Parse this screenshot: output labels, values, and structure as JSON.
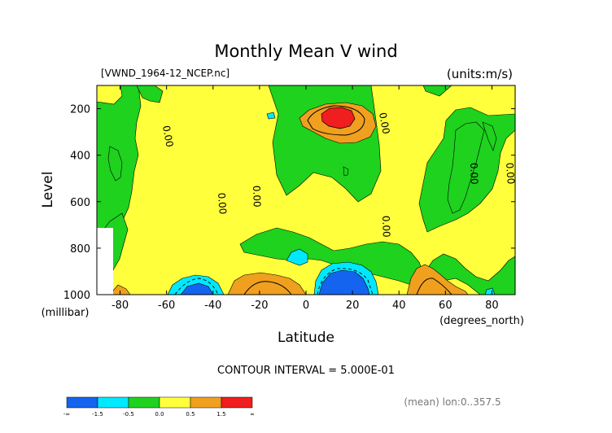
{
  "chart_data": {
    "type": "contour",
    "title": "Monthly Mean V wind",
    "file_label": "[VWND_1964-12_NCEP.nc]",
    "units_label": "(units:m/s)",
    "xlabel": "Latitude",
    "x_units": "(degrees_north)",
    "ylabel": "Level",
    "y_units": "(millibar)",
    "xlim": [
      -90,
      90
    ],
    "ylim": [
      1000,
      100
    ],
    "x_ticks": [
      -80,
      -60,
      -40,
      -20,
      0,
      20,
      40,
      60,
      80
    ],
    "x_tick_labels": [
      "-80",
      "-60",
      "-40",
      "-20",
      "0",
      "20",
      "40",
      "60",
      "80"
    ],
    "y_ticks": [
      200,
      400,
      600,
      800,
      1000
    ],
    "y_tick_labels": [
      "200",
      "400",
      "600",
      "800",
      "1000"
    ],
    "contour_interval_text": "CONTOUR INTERVAL = 5.000E-01",
    "footnote": "(mean) lon:0..357.5",
    "contour_labels": [
      "0.00",
      "0.00",
      "0.00",
      "0.00",
      "0.00",
      "0.00"
    ],
    "colorbar": {
      "colors": [
        "#1464f0",
        "#00e8ff",
        "#1ed21e",
        "#ffff3c",
        "#f0a01e",
        "#f01e1e"
      ],
      "labels": [
        "-∞",
        "-1.5",
        "-0.5",
        "0.0",
        "0.5",
        "1.5",
        "∞"
      ]
    }
  }
}
